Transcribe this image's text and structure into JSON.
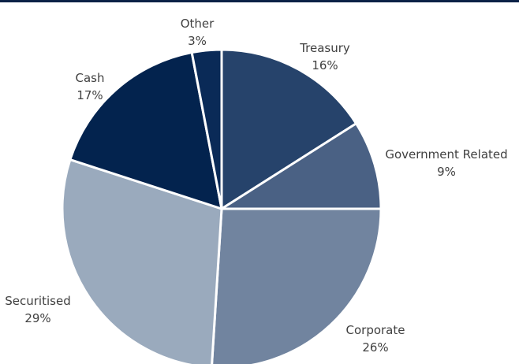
{
  "chart_data": {
    "type": "pie",
    "title": "",
    "slices": [
      {
        "name": "Treasury",
        "value": 16,
        "label": "16%",
        "color": "#26436b"
      },
      {
        "name": "Government Related",
        "value": 9,
        "label": "9%",
        "color": "#4a6184"
      },
      {
        "name": "Corporate",
        "value": 26,
        "label": "26%",
        "color": "#71849f"
      },
      {
        "name": "Securitised",
        "value": 29,
        "label": "29%",
        "color": "#9aaabd"
      },
      {
        "name": "Cash",
        "value": 17,
        "label": "17%",
        "color": "#03234e"
      },
      {
        "name": "Other",
        "value": 3,
        "label": "3%",
        "color": "#0a2a57"
      }
    ],
    "legend": "none",
    "start_angle": "12 o'clock, clockwise"
  }
}
